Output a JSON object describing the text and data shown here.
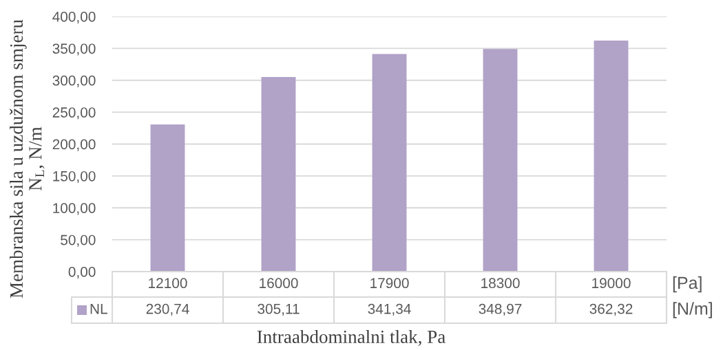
{
  "chart_data": {
    "type": "bar",
    "categories": [
      "12100",
      "16000",
      "17900",
      "18300",
      "19000"
    ],
    "series": [
      {
        "name": "NL",
        "color": "#b1a2c8",
        "values": [
          230.74,
          305.11,
          341.34,
          348.97,
          362.32
        ],
        "value_labels": [
          "230,74",
          "305,11",
          "341,34",
          "348,97",
          "362,32"
        ]
      }
    ],
    "xlabel": "Intraabdominalni tlak, Pa",
    "ylabel": "Membranska sila u uzdužnom smjeru\nN$_{L}$, N/m",
    "ylim": [
      0,
      400
    ],
    "yticks": [
      {
        "value": 0,
        "label": "0,00"
      },
      {
        "value": 50,
        "label": "50,00"
      },
      {
        "value": 100,
        "label": "100,00"
      },
      {
        "value": 150,
        "label": "150,00"
      },
      {
        "value": 200,
        "label": "200,00"
      },
      {
        "value": 250,
        "label": "250,00"
      },
      {
        "value": 300,
        "label": "300,00"
      },
      {
        "value": 350,
        "label": "350,00"
      },
      {
        "value": 400,
        "label": "400,00"
      }
    ],
    "grid": "y",
    "legend": "bottom",
    "annotations": [
      "[Pa]",
      "[N/m]"
    ]
  }
}
